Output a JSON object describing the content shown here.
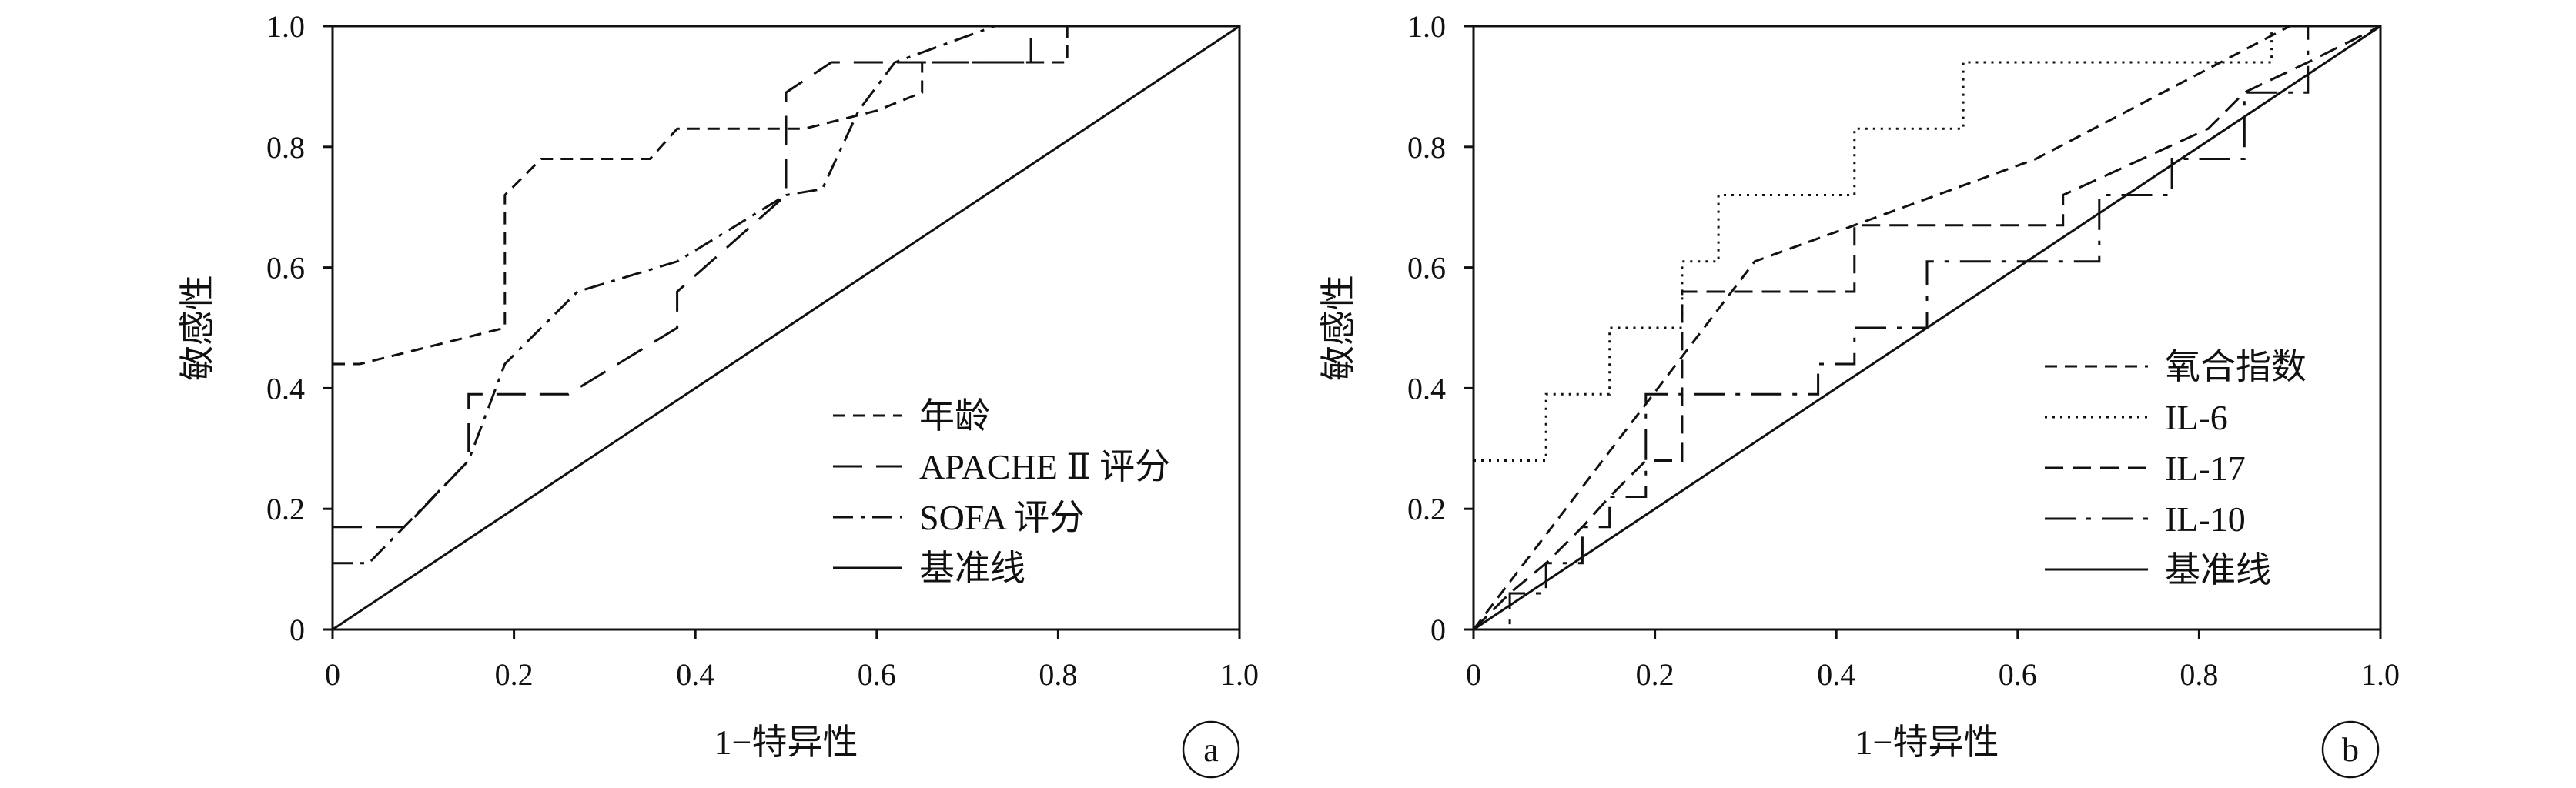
{
  "chart_data": [
    {
      "type": "line",
      "panel_label": "a",
      "xlabel": "1−特异性",
      "ylabel": "敏感性",
      "xlim": [
        0,
        1.0
      ],
      "ylim": [
        0,
        1.0
      ],
      "x_ticks": [
        "0",
        "0.2",
        "0.4",
        "0.6",
        "0.8",
        "1.0"
      ],
      "y_ticks": [
        "0",
        "0.2",
        "0.4",
        "0.6",
        "0.8",
        "1.0"
      ],
      "legend_position": "lower-right",
      "grid": false,
      "series": [
        {
          "name": "年龄",
          "dash": "dashed-short",
          "x": [
            0,
            0.03,
            0.19,
            0.19,
            0.23,
            0.35,
            0.38,
            0.38,
            0.52,
            0.6,
            0.65,
            0.65,
            0.69,
            0.81,
            0.81,
            1.0
          ],
          "y": [
            0.44,
            0.44,
            0.5,
            0.72,
            0.78,
            0.78,
            0.83,
            0.83,
            0.83,
            0.86,
            0.89,
            0.94,
            0.94,
            0.94,
            1.0,
            1.0
          ]
        },
        {
          "name": "APACHE Ⅱ 评分",
          "dash": "dashed-long",
          "x": [
            0,
            0.08,
            0.15,
            0.15,
            0.18,
            0.26,
            0.38,
            0.38,
            0.5,
            0.5,
            0.55,
            0.6,
            0.69,
            0.77,
            0.77,
            1.0
          ],
          "y": [
            0.17,
            0.17,
            0.28,
            0.39,
            0.39,
            0.39,
            0.5,
            0.56,
            0.72,
            0.89,
            0.94,
            0.94,
            0.94,
            0.94,
            1.0,
            1.0
          ]
        },
        {
          "name": "SOFA 评分",
          "dash": "dash-dot",
          "x": [
            0,
            0.04,
            0.15,
            0.19,
            0.27,
            0.38,
            0.5,
            0.54,
            0.58,
            0.62,
            0.62,
            0.73,
            1.0
          ],
          "y": [
            0.11,
            0.11,
            0.28,
            0.44,
            0.56,
            0.61,
            0.72,
            0.73,
            0.86,
            0.94,
            0.94,
            1.0,
            1.0
          ]
        },
        {
          "name": "基准线",
          "dash": "solid",
          "x": [
            0,
            1.0
          ],
          "y": [
            0,
            1.0
          ]
        }
      ]
    },
    {
      "type": "line",
      "panel_label": "b",
      "xlabel": "1−特异性",
      "ylabel": "敏感性",
      "xlim": [
        0,
        1.0
      ],
      "ylim": [
        0,
        1.0
      ],
      "x_ticks": [
        "0",
        "0.2",
        "0.4",
        "0.6",
        "0.8",
        "1.0"
      ],
      "y_ticks": [
        "0",
        "0.2",
        "0.4",
        "0.6",
        "0.8",
        "1.0"
      ],
      "legend_position": "lower-right",
      "grid": false,
      "series": [
        {
          "name": "氧合指数",
          "dash": "dashed-short",
          "x": [
            0,
            0.31,
            0.42,
            0.62,
            0.9,
            1.0
          ],
          "y": [
            0,
            0.61,
            0.67,
            0.78,
            1.0,
            1.0
          ]
        },
        {
          "name": "IL-6",
          "dash": "dotted",
          "x": [
            0,
            0.08,
            0.08,
            0.15,
            0.15,
            0.23,
            0.23,
            0.27,
            0.27,
            0.42,
            0.42,
            0.54,
            0.54,
            0.88,
            0.88,
            1.0
          ],
          "y": [
            0.28,
            0.28,
            0.39,
            0.39,
            0.5,
            0.5,
            0.61,
            0.61,
            0.72,
            0.72,
            0.83,
            0.83,
            0.94,
            0.94,
            1.0,
            1.0
          ]
        },
        {
          "name": "IL-17",
          "dash": "dashed-mid",
          "x": [
            0,
            0.04,
            0.08,
            0.12,
            0.15,
            0.19,
            0.19,
            0.23,
            0.23,
            0.42,
            0.42,
            0.65,
            0.65,
            0.81,
            0.81,
            0.85,
            0.85,
            0.92,
            1.0
          ],
          "y": [
            0,
            0.06,
            0.11,
            0.17,
            0.22,
            0.28,
            0.28,
            0.28,
            0.56,
            0.56,
            0.67,
            0.67,
            0.72,
            0.83,
            0.83,
            0.89,
            0.89,
            0.94,
            1.0
          ]
        },
        {
          "name": "IL-10",
          "dash": "dash-dot-long",
          "x": [
            0,
            0.04,
            0.04,
            0.08,
            0.08,
            0.12,
            0.12,
            0.15,
            0.15,
            0.19,
            0.19,
            0.23,
            0.23,
            0.38,
            0.38,
            0.42,
            0.42,
            0.5,
            0.5,
            0.69,
            0.69,
            0.77,
            0.77,
            0.85,
            0.85,
            0.92,
            0.92,
            1.0
          ],
          "y": [
            0,
            0,
            0.06,
            0.06,
            0.11,
            0.11,
            0.17,
            0.17,
            0.22,
            0.22,
            0.39,
            0.39,
            0.39,
            0.39,
            0.44,
            0.44,
            0.5,
            0.5,
            0.61,
            0.61,
            0.72,
            0.72,
            0.78,
            0.78,
            0.89,
            0.89,
            1.0,
            1.0
          ]
        },
        {
          "name": "基准线",
          "dash": "solid",
          "x": [
            0,
            1.0
          ],
          "y": [
            0,
            1.0
          ]
        }
      ]
    }
  ]
}
